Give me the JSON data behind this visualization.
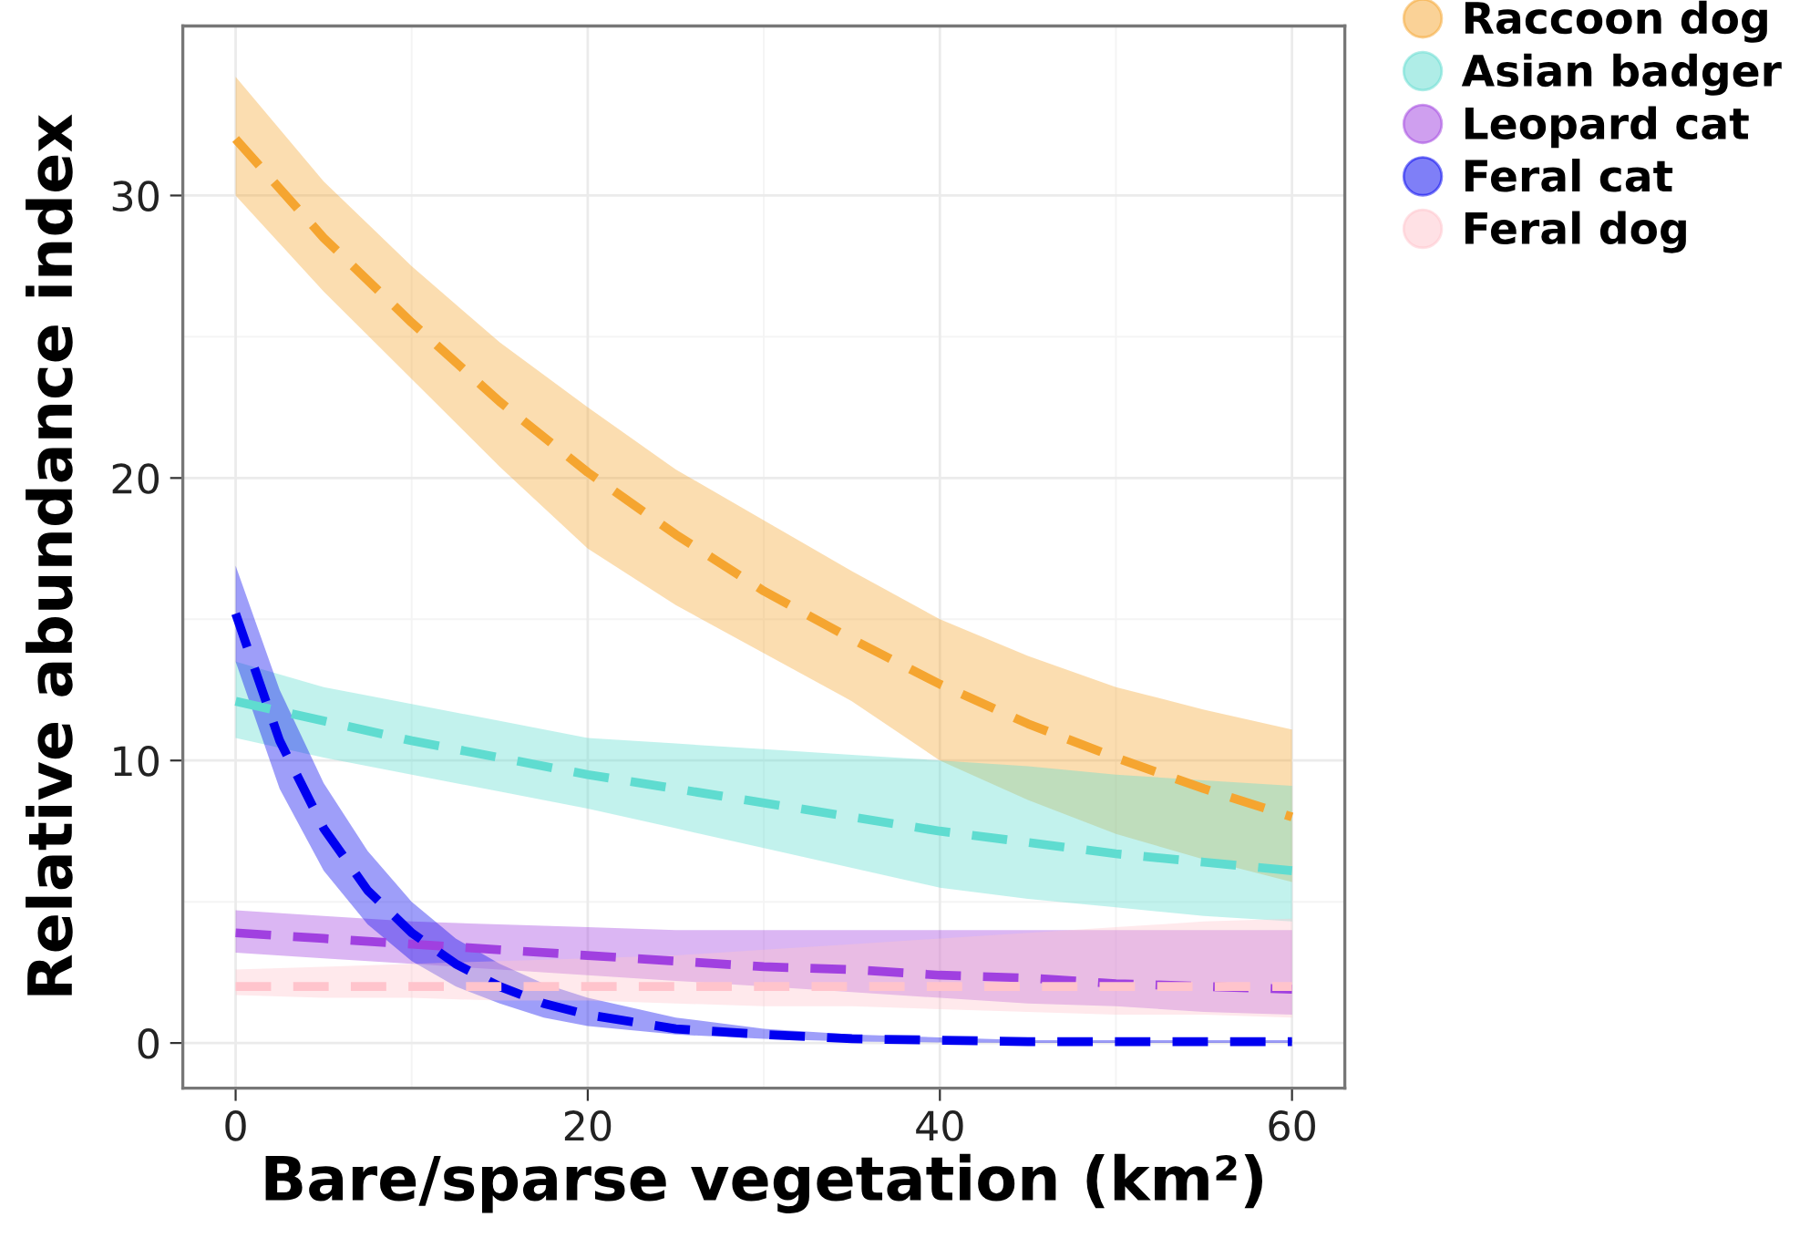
{
  "chart_data": {
    "type": "line",
    "xlabel": "Bare/sparse vegetation (km²)",
    "ylabel": "Relative abundance index",
    "xlim": [
      -3,
      63
    ],
    "ylim": [
      -1.6,
      36
    ],
    "xticks": [
      0,
      20,
      40,
      60
    ],
    "yticks": [
      0,
      10,
      20,
      30
    ],
    "grid": true,
    "legend": "top right",
    "line_style": "dashed",
    "marker": "none",
    "series": [
      {
        "name": "Raccoon dog",
        "color": "#f5a530",
        "x": [
          0,
          5,
          10,
          15,
          20,
          25,
          30,
          35,
          40,
          45,
          50,
          55,
          60
        ],
        "values": [
          32,
          28.5,
          25.5,
          22.7,
          20.2,
          18,
          16,
          14.3,
          12.7,
          11.3,
          10.1,
          9,
          8
        ],
        "upper": [
          34.2,
          30.5,
          27.5,
          24.8,
          22.5,
          20.3,
          18.5,
          16.7,
          15.0,
          13.7,
          12.6,
          11.8,
          11.1
        ],
        "lower": [
          30.0,
          26.6,
          23.5,
          20.4,
          17.5,
          15.5,
          13.8,
          12.1,
          10.0,
          8.6,
          7.4,
          6.5,
          5.7
        ]
      },
      {
        "name": "Asian badger",
        "color": "#5fdcd0",
        "x": [
          0,
          5,
          10,
          15,
          20,
          25,
          30,
          35,
          40,
          45,
          50,
          55,
          60
        ],
        "values": [
          12.1,
          11.4,
          10.7,
          10.1,
          9.5,
          9.0,
          8.5,
          8.0,
          7.5,
          7.1,
          6.7,
          6.4,
          6.1
        ],
        "upper": [
          13.5,
          12.6,
          12.0,
          11.4,
          10.8,
          10.6,
          10.4,
          10.2,
          10.0,
          9.8,
          9.5,
          9.3,
          9.1
        ],
        "lower": [
          10.8,
          10.1,
          9.5,
          8.9,
          8.3,
          7.6,
          6.9,
          6.2,
          5.5,
          5.1,
          4.8,
          4.5,
          4.3
        ]
      },
      {
        "name": "Leopard cat",
        "color": "#a040e0",
        "x": [
          0,
          5,
          10,
          15,
          20,
          25,
          30,
          35,
          40,
          45,
          50,
          55,
          60
        ],
        "values": [
          3.9,
          3.7,
          3.5,
          3.3,
          3.1,
          2.9,
          2.7,
          2.6,
          2.4,
          2.3,
          2.1,
          2.0,
          1.9
        ],
        "upper": [
          4.7,
          4.5,
          4.3,
          4.2,
          4.1,
          4.0,
          4.0,
          4.0,
          4.0,
          4.0,
          4.0,
          4.0,
          4.0
        ],
        "lower": [
          3.2,
          3.0,
          2.8,
          2.6,
          2.4,
          2.2,
          2.0,
          1.8,
          1.6,
          1.4,
          1.3,
          1.1,
          1.0
        ]
      },
      {
        "name": "Feral cat",
        "color": "#0000f0",
        "x": [
          0,
          2.5,
          5,
          7.5,
          10,
          12.5,
          15,
          17.5,
          20,
          25,
          30,
          35,
          40,
          45,
          50,
          55,
          60
        ],
        "values": [
          15.2,
          10.7,
          7.6,
          5.4,
          3.9,
          2.8,
          2.0,
          1.4,
          1.0,
          0.5,
          0.3,
          0.15,
          0.1,
          0.05,
          0.05,
          0.05,
          0.05
        ],
        "upper": [
          16.9,
          12.5,
          9.2,
          6.8,
          5.0,
          3.7,
          2.8,
          2.1,
          1.6,
          0.9,
          0.5,
          0.3,
          0.2,
          0.1,
          0.1,
          0.1,
          0.1
        ],
        "lower": [
          13.5,
          9.0,
          6.1,
          4.2,
          2.9,
          2.0,
          1.4,
          0.9,
          0.6,
          0.3,
          0.15,
          0.05,
          0.02,
          0,
          0,
          0,
          0
        ]
      },
      {
        "name": "Feral dog",
        "color": "#ffc4cc",
        "x": [
          0,
          5,
          10,
          15,
          20,
          25,
          30,
          35,
          40,
          45,
          50,
          55,
          60
        ],
        "values": [
          2.0,
          2.0,
          2.0,
          2.0,
          2.0,
          2.0,
          2.0,
          2.0,
          2.0,
          2.0,
          2.0,
          2.0,
          2.0
        ],
        "upper": [
          2.6,
          2.7,
          2.8,
          2.9,
          3.0,
          3.1,
          3.3,
          3.5,
          3.7,
          3.9,
          4.1,
          4.3,
          4.4
        ],
        "lower": [
          1.7,
          1.6,
          1.6,
          1.5,
          1.5,
          1.4,
          1.3,
          1.3,
          1.2,
          1.1,
          1.0,
          1.0,
          0.9
        ]
      }
    ]
  }
}
